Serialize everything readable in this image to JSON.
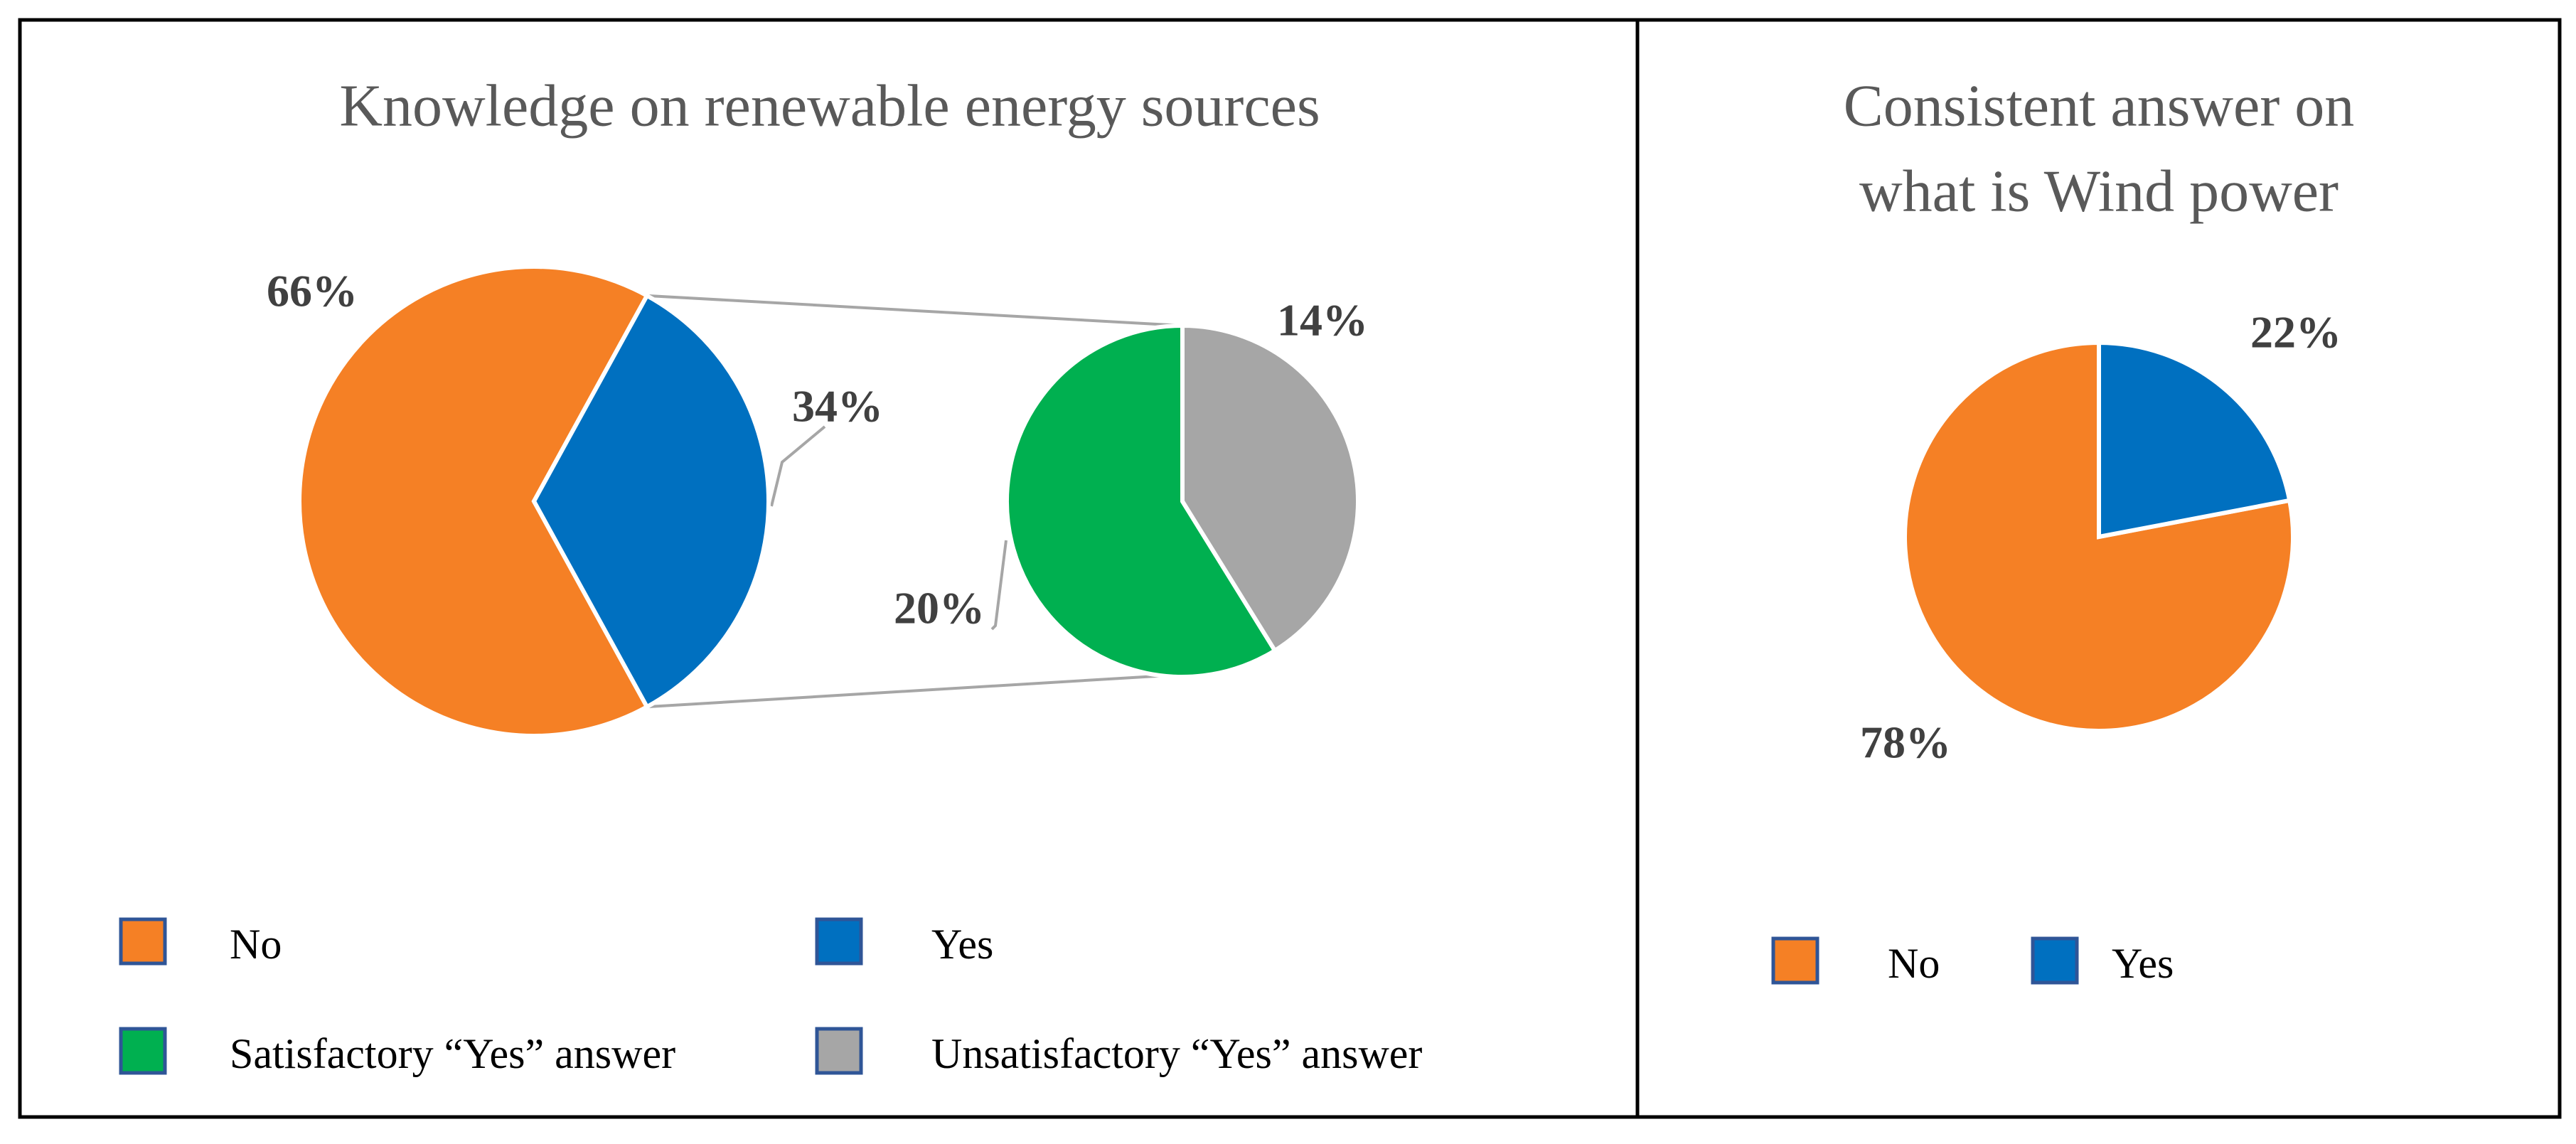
{
  "chart_data": [
    {
      "type": "pie",
      "title": "Knowledge on renewable energy sources",
      "categories": [
        "No",
        "Yes"
      ],
      "values": [
        66,
        34
      ],
      "value_labels": [
        "66%",
        "34%"
      ],
      "colors": [
        "#f58025",
        "#0070c0"
      ],
      "breakdown": {
        "categories": [
          "Satisfactory “Yes” answer",
          "Unsatisfactory “Yes” answer"
        ],
        "values": [
          20,
          14
        ],
        "value_labels": [
          "20%",
          "14%"
        ],
        "colors": [
          "#00b050",
          "#a6a6a6"
        ]
      }
    },
    {
      "type": "pie",
      "title": [
        "Consistent answer on",
        "what is Wind power"
      ],
      "categories": [
        "No",
        "Yes"
      ],
      "values": [
        78,
        22
      ],
      "value_labels": [
        "78%",
        "22%"
      ],
      "colors": [
        "#f58025",
        "#0070c0"
      ]
    }
  ]
}
